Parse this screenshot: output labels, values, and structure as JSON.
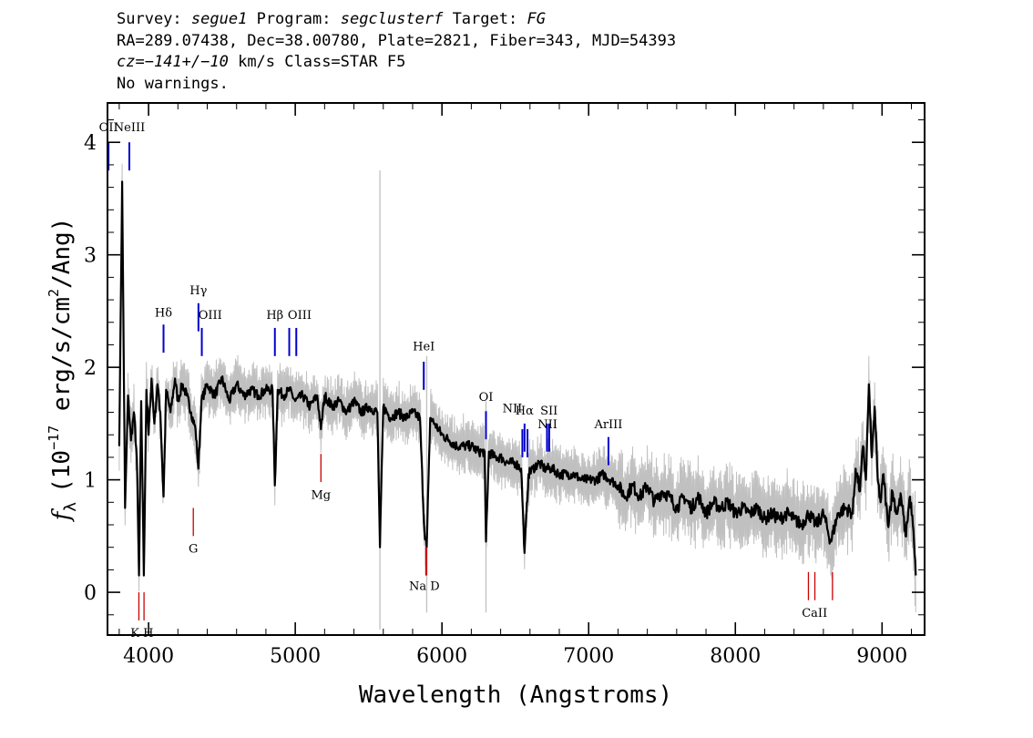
{
  "header": {
    "survey_label": "Survey:",
    "survey": "segue1",
    "program_label": "Program:",
    "program": "segclusterf",
    "target_label": "Target:",
    "target": "FG",
    "line2": "RA=289.07438, Dec=38.00780, Plate=2821, Fiber=343, MJD=54393",
    "cz_label": "cz=",
    "cz_value": "−141+/−10",
    "cz_rest": " km/s Class=STAR F5",
    "line4": "No warnings."
  },
  "chart_data": {
    "type": "line",
    "xlabel": "Wavelength (Angstroms)",
    "ylabel_prefix": "f",
    "ylabel_sub": "λ",
    "ylabel_unit_open": "(10",
    "ylabel_exp": "−17",
    "ylabel_unit_mid": " erg/s/cm",
    "ylabel_exp2": "2",
    "ylabel_unit_close": "/Ang)",
    "xlim": [
      3720,
      9290
    ],
    "ylim": [
      -0.38,
      4.35
    ],
    "x_ticks": [
      4000,
      5000,
      6000,
      7000,
      8000,
      9000
    ],
    "y_ticks": [
      0,
      1,
      2,
      3,
      4
    ],
    "colors": {
      "flux": "#000000",
      "error": "#c0c0c0",
      "emission": "#0000cc",
      "absorption": "#cc0000"
    },
    "series": [
      {
        "role": "flux",
        "points": [
          [
            3800,
            1.3
          ],
          [
            3820,
            3.65
          ],
          [
            3840,
            0.75
          ],
          [
            3860,
            1.75
          ],
          [
            3880,
            1.35
          ],
          [
            3900,
            1.6
          ],
          [
            3920,
            1.2
          ],
          [
            3935,
            0.15
          ],
          [
            3950,
            1.7
          ],
          [
            3968,
            0.15
          ],
          [
            3985,
            1.8
          ],
          [
            4000,
            1.4
          ],
          [
            4020,
            1.9
          ],
          [
            4040,
            1.5
          ],
          [
            4060,
            1.85
          ],
          [
            4080,
            1.6
          ],
          [
            4102,
            0.85
          ],
          [
            4120,
            1.8
          ],
          [
            4150,
            1.6
          ],
          [
            4180,
            1.9
          ],
          [
            4200,
            1.7
          ],
          [
            4230,
            1.85
          ],
          [
            4260,
            1.75
          ],
          [
            4290,
            1.6
          ],
          [
            4320,
            1.45
          ],
          [
            4340,
            1.1
          ],
          [
            4360,
            1.7
          ],
          [
            4400,
            1.85
          ],
          [
            4450,
            1.75
          ],
          [
            4500,
            1.9
          ],
          [
            4550,
            1.7
          ],
          [
            4600,
            1.85
          ],
          [
            4650,
            1.75
          ],
          [
            4700,
            1.8
          ],
          [
            4750,
            1.75
          ],
          [
            4800,
            1.8
          ],
          [
            4845,
            1.8
          ],
          [
            4861,
            0.95
          ],
          [
            4880,
            1.8
          ],
          [
            4920,
            1.75
          ],
          [
            4960,
            1.8
          ],
          [
            5000,
            1.7
          ],
          [
            5050,
            1.75
          ],
          [
            5100,
            1.65
          ],
          [
            5150,
            1.75
          ],
          [
            5175,
            1.45
          ],
          [
            5200,
            1.75
          ],
          [
            5250,
            1.65
          ],
          [
            5300,
            1.7
          ],
          [
            5350,
            1.6
          ],
          [
            5400,
            1.7
          ],
          [
            5450,
            1.6
          ],
          [
            5500,
            1.65
          ],
          [
            5560,
            1.6
          ],
          [
            5577,
            0.4
          ],
          [
            5600,
            1.65
          ],
          [
            5650,
            1.55
          ],
          [
            5700,
            1.6
          ],
          [
            5750,
            1.55
          ],
          [
            5800,
            1.6
          ],
          [
            5850,
            1.55
          ],
          [
            5880,
            0.55
          ],
          [
            5896,
            0.4
          ],
          [
            5920,
            1.55
          ],
          [
            5950,
            1.5
          ],
          [
            6000,
            1.4
          ],
          [
            6050,
            1.35
          ],
          [
            6100,
            1.3
          ],
          [
            6150,
            1.3
          ],
          [
            6200,
            1.3
          ],
          [
            6250,
            1.25
          ],
          [
            6290,
            1.25
          ],
          [
            6300,
            0.45
          ],
          [
            6320,
            1.25
          ],
          [
            6360,
            1.2
          ],
          [
            6400,
            1.2
          ],
          [
            6450,
            1.15
          ],
          [
            6500,
            1.15
          ],
          [
            6540,
            1.1
          ],
          [
            6563,
            0.35
          ],
          [
            6590,
            1.05
          ],
          [
            6620,
            1.1
          ],
          [
            6660,
            1.15
          ],
          [
            6700,
            1.1
          ],
          [
            6750,
            1.1
          ],
          [
            6800,
            1.05
          ],
          [
            6850,
            1.05
          ],
          [
            6900,
            1.05
          ],
          [
            6950,
            1.0
          ],
          [
            7000,
            1.0
          ],
          [
            7050,
            1.0
          ],
          [
            7100,
            1.05
          ],
          [
            7150,
            1.0
          ],
          [
            7200,
            0.95
          ],
          [
            7250,
            0.85
          ],
          [
            7300,
            0.95
          ],
          [
            7350,
            0.85
          ],
          [
            7400,
            0.95
          ],
          [
            7450,
            0.8
          ],
          [
            7500,
            0.9
          ],
          [
            7550,
            0.85
          ],
          [
            7600,
            0.75
          ],
          [
            7650,
            0.85
          ],
          [
            7700,
            0.75
          ],
          [
            7750,
            0.85
          ],
          [
            7800,
            0.7
          ],
          [
            7850,
            0.8
          ],
          [
            7900,
            0.75
          ],
          [
            7950,
            0.8
          ],
          [
            8000,
            0.7
          ],
          [
            8050,
            0.75
          ],
          [
            8100,
            0.7
          ],
          [
            8150,
            0.75
          ],
          [
            8200,
            0.65
          ],
          [
            8250,
            0.7
          ],
          [
            8300,
            0.65
          ],
          [
            8350,
            0.7
          ],
          [
            8400,
            0.65
          ],
          [
            8450,
            0.6
          ],
          [
            8500,
            0.7
          ],
          [
            8550,
            0.6
          ],
          [
            8600,
            0.7
          ],
          [
            8650,
            0.45
          ],
          [
            8700,
            0.7
          ],
          [
            8750,
            0.75
          ],
          [
            8800,
            0.7
          ],
          [
            8820,
            1.1
          ],
          [
            8850,
            0.9
          ],
          [
            8870,
            1.3
          ],
          [
            8890,
            1.0
          ],
          [
            8910,
            1.85
          ],
          [
            8930,
            1.2
          ],
          [
            8950,
            1.65
          ],
          [
            8970,
            1.0
          ],
          [
            8990,
            0.8
          ],
          [
            9010,
            1.05
          ],
          [
            9040,
            0.6
          ],
          [
            9070,
            0.9
          ],
          [
            9100,
            0.7
          ],
          [
            9130,
            0.85
          ],
          [
            9160,
            0.5
          ],
          [
            9190,
            0.85
          ],
          [
            9210,
            0.6
          ],
          [
            9230,
            0.15
          ]
        ]
      }
    ],
    "spikes": [
      [
        5577,
        3.75,
        -0.33
      ],
      [
        5896,
        2.1,
        -0.18
      ],
      [
        6300,
        1.7,
        -0.18
      ],
      [
        9225,
        0.9,
        -0.12
      ]
    ],
    "emission_lines": [
      {
        "label": "OII",
        "x": 3727,
        "y_label": 4.05
      },
      {
        "label": "NeIII",
        "x": 3869,
        "y_label": 4.05
      },
      {
        "label": "Hδ",
        "x": 4102,
        "y_label": 2.43
      },
      {
        "label": "Hγ",
        "x": 4340,
        "y_label": 2.62
      },
      {
        "label": "OIII",
        "x": 4363,
        "y_label": 2.4
      },
      {
        "label": "Hβ",
        "x": 4861,
        "y_label": 2.4
      },
      {
        "label": "OIII",
        "x": 4959,
        "y_label": 2.4
      },
      {
        "label": "OIII",
        "x": 5007,
        "y_label": 2.4
      },
      {
        "label": "HeI",
        "x": 5876,
        "y_label": 2.1
      },
      {
        "label": "OI",
        "x": 6300,
        "y_label": 1.66
      },
      {
        "label": "NII",
        "x": 6548,
        "y_label": 1.5
      },
      {
        "label": "Hα",
        "x": 6563,
        "y_label": 1.55
      },
      {
        "label": "NII",
        "x": 6583,
        "y_label": 1.5
      },
      {
        "label": "SII",
        "x": 6716,
        "y_label": 1.55
      },
      {
        "label": "SII",
        "x": 6731,
        "y_label": 1.55
      },
      {
        "label": "ArIII",
        "x": 7135,
        "y_label": 1.43
      }
    ],
    "absorption_lines": [
      {
        "label": "K",
        "x": 3934,
        "y_label": -0.3
      },
      {
        "label": "H",
        "x": 3969,
        "y_label": -0.3
      },
      {
        "label": "G",
        "x": 4305,
        "y_label": 0.45
      },
      {
        "label": "Mg",
        "x": 5175,
        "y_label": 0.93
      },
      {
        "label": "Na",
        "x": 5890,
        "y_label": 0.1
      },
      {
        "label": "D",
        "x": 5896,
        "y_label": 0.1
      },
      {
        "label": "CaII",
        "x": 8498,
        "y_label": -0.12
      },
      {
        "label": "CaII",
        "x": 8542,
        "y_label": -0.12
      },
      {
        "label": "CaII",
        "x": 8662,
        "y_label": -0.12
      }
    ],
    "emission_display": [
      "OII",
      "NeIII",
      "Hδ",
      "Hγ",
      "OIII",
      "Hβ",
      "OIII",
      "HeI",
      "OI",
      "NII",
      "Hα",
      "SII",
      "NII",
      "ArIII"
    ],
    "absorption_display": [
      "K H",
      "G",
      "Mg",
      "Na  D",
      "CaII"
    ]
  }
}
